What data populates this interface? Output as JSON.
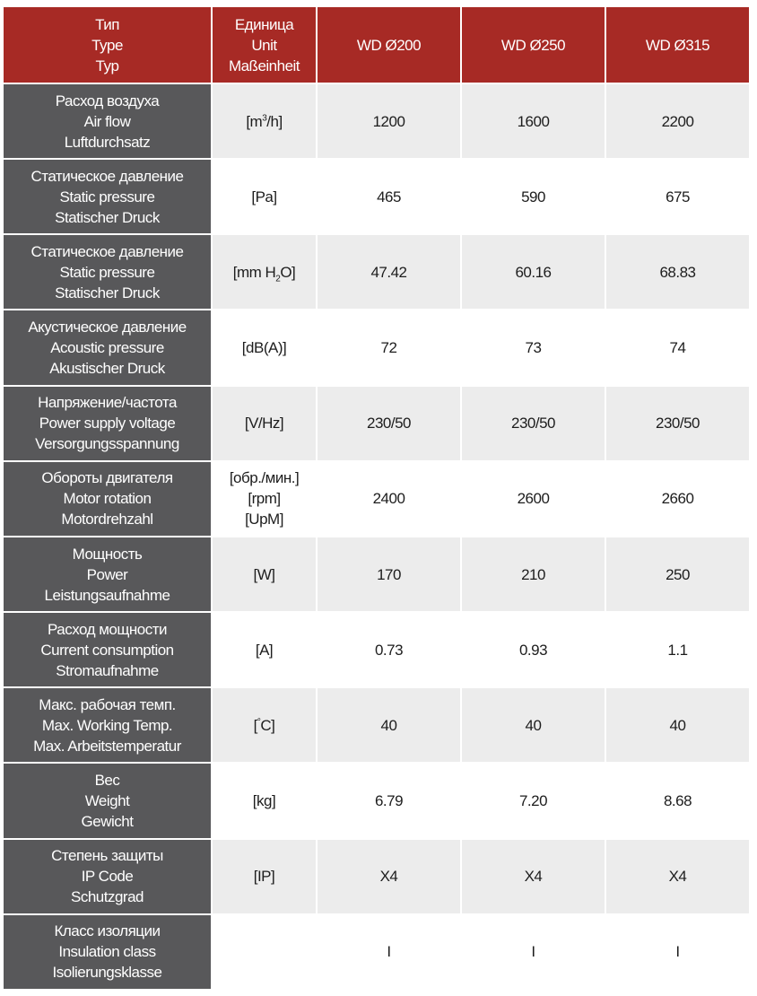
{
  "header": {
    "type": [
      "Тип",
      "Type",
      "Typ"
    ],
    "unit": [
      "Единица",
      "Unit",
      "Maßeinheit"
    ],
    "models": [
      "WD Ø200",
      "WD Ø250",
      "WD Ø315"
    ]
  },
  "rows": [
    {
      "labels": [
        "Расход воздуха",
        "Air flow",
        "Luftdurchsatz"
      ],
      "unit_main": "[m",
      "unit_sup": "3",
      "unit_tail": "/h]",
      "values": [
        "1200",
        "1600",
        "2200"
      ]
    },
    {
      "labels": [
        "Статическое давление",
        "Static pressure",
        "Statischer Druck"
      ],
      "unit": "[Pa]",
      "values": [
        "465",
        "590",
        "675"
      ]
    },
    {
      "labels": [
        "Статическое давление",
        "Static pressure",
        "Statischer Druck"
      ],
      "unit_main": "[mm H",
      "unit_sub": "2",
      "unit_tail": "O]",
      "values": [
        "47.42",
        "60.16",
        "68.83"
      ]
    },
    {
      "labels": [
        "Акустическое давление",
        "Acoustic pressure",
        "Akustischer Druck"
      ],
      "unit": "[dB(A)]",
      "values": [
        "72",
        "73",
        "74"
      ]
    },
    {
      "labels": [
        "Напряжение/частота",
        "Power supply voltage",
        "Versorgungsspannung"
      ],
      "unit": "[V/Hz]",
      "values": [
        "230/50",
        "230/50",
        "230/50"
      ]
    },
    {
      "labels": [
        "Обороты двигателя",
        "Motor rotation",
        "Motordrehzahl"
      ],
      "unit_lines": [
        "[обр./мин.]",
        "[rpm]",
        "[UpM]"
      ],
      "values": [
        "2400",
        "2600",
        "2660"
      ]
    },
    {
      "labels": [
        "Мощность",
        "Power",
        "Leistungsaufnahme"
      ],
      "unit": "[W]",
      "values": [
        "170",
        "210",
        "250"
      ]
    },
    {
      "labels": [
        "Расход мощности",
        "Current consumption",
        "Stromaufnahme"
      ],
      "unit": "[A]",
      "values": [
        "0.73",
        "0.93",
        "1.1"
      ]
    },
    {
      "labels": [
        "Макс. рабочая темп.",
        "Max. Working Temp.",
        "Max. Arbeitstemperatur"
      ],
      "unit_main": "[",
      "unit_sup": "°",
      "unit_tail": "C]",
      "values": [
        "40",
        "40",
        "40"
      ]
    },
    {
      "labels": [
        "Вес",
        "Weight",
        "Gewicht"
      ],
      "unit": "[kg]",
      "values": [
        "6.79",
        "7.20",
        "8.68"
      ]
    },
    {
      "labels": [
        "Степень защиты",
        "IP Code",
        "Schutzgrad"
      ],
      "unit": "[IP]",
      "values": [
        "X4",
        "X4",
        "X4"
      ]
    },
    {
      "labels": [
        "Класс изоляции",
        "Insulation class",
        "Isolierungsklasse"
      ],
      "unit": "",
      "values": [
        "I",
        "I",
        "I"
      ]
    }
  ],
  "colors": {
    "header_bg": "#a72a25",
    "label_bg": "#58585a",
    "stripe_bg": "#ececec"
  }
}
